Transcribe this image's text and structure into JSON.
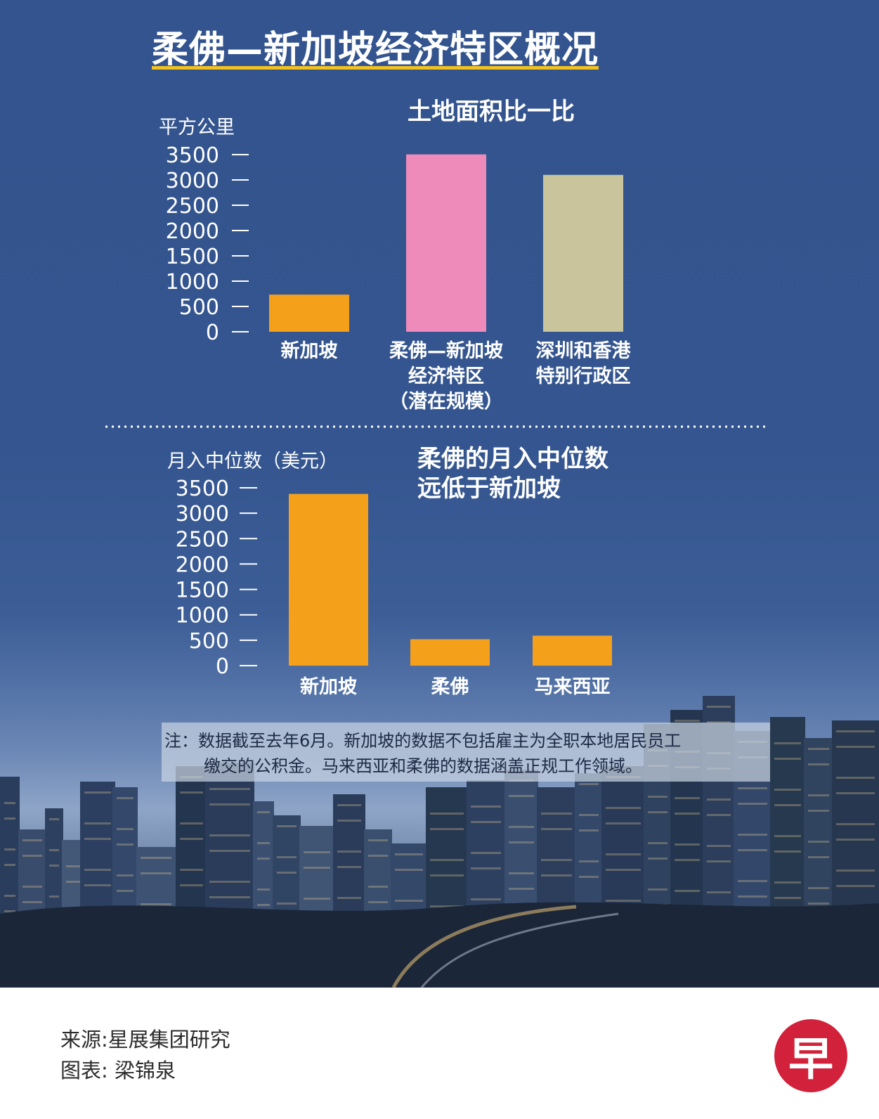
{
  "headline": "柔佛—新加坡经济特区概况",
  "chart_data": [
    {
      "type": "bar",
      "title": "土地面积比一比",
      "ylabel": "平方公里",
      "ylim": [
        0,
        3500
      ],
      "yticks": [
        "3500",
        "3000",
        "2500",
        "2000",
        "1500",
        "1000",
        "500",
        "0"
      ],
      "categories": [
        [
          "新加坡"
        ],
        [
          "柔佛—新加坡",
          "经济特区",
          "（潜在规模）"
        ],
        [
          "深圳和香港",
          "特别行政区"
        ]
      ],
      "values": [
        734,
        3505,
        3100
      ],
      "colors": [
        "#f5a01b",
        "#ee8bbb",
        "#c9c49c"
      ]
    },
    {
      "type": "bar",
      "title": [
        "柔佛的月入中位数",
        "远低于新加坡"
      ],
      "ylabel": "月入中位数（美元）",
      "ylim": [
        0,
        3500
      ],
      "yticks": [
        "3500",
        "3000",
        "2500",
        "2000",
        "1500",
        "1000",
        "500",
        "0"
      ],
      "categories": [
        [
          "新加坡"
        ],
        [
          "柔佛"
        ],
        [
          "马来西亚"
        ]
      ],
      "values": [
        3380,
        520,
        590
      ],
      "colors": [
        "#f5a01b",
        "#f5a01b",
        "#f5a01b"
      ]
    }
  ],
  "note": [
    "注：数据截至去年6月。新加坡的数据不包括雇主为全职本地居民员工",
    "缴交的公积金。马来西亚和柔佛的数据涵盖正规工作领域。"
  ],
  "footer": {
    "source": "来源:星展集团研究",
    "credit": "图表:   梁锦泉"
  },
  "logo_text": "早",
  "colors": {
    "title_rule": "#f4c21b",
    "logo": "#d2213a"
  }
}
